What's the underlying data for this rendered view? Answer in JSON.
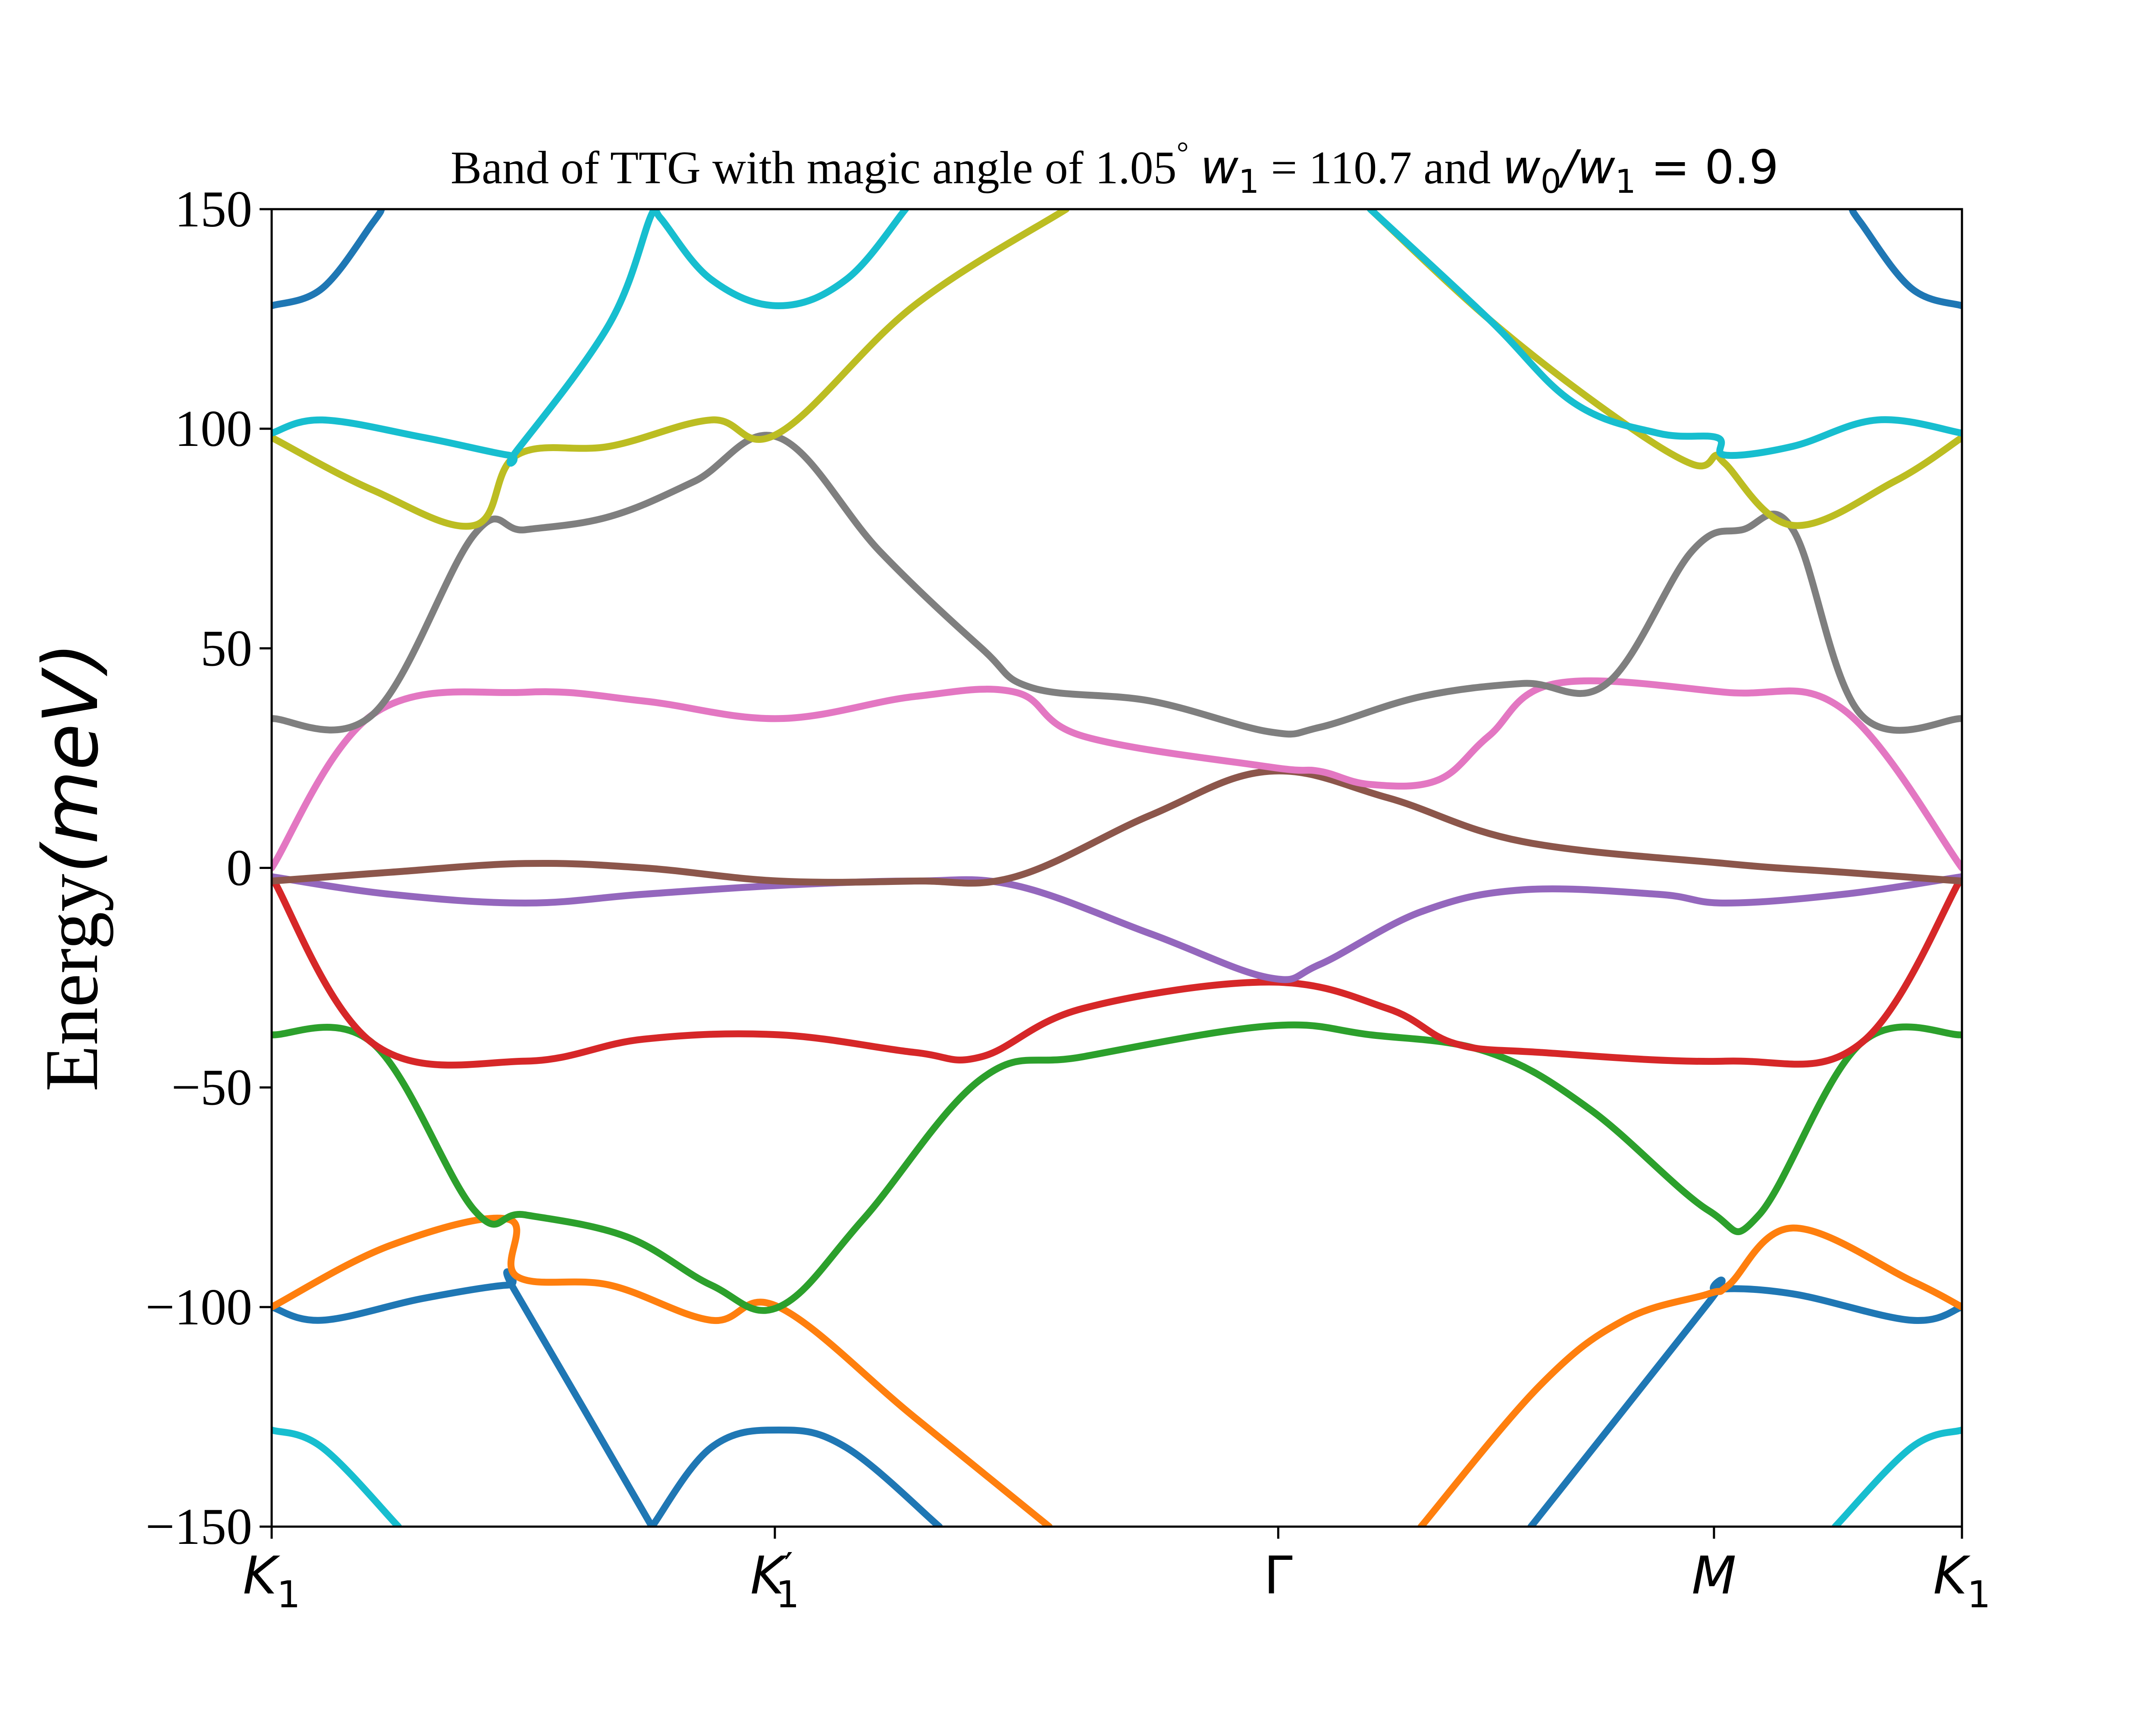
{
  "chart_data": {
    "type": "line",
    "title_parts": {
      "text_1": "Band of TTG with magic angle of 1.05",
      "degree": "°",
      "w1_sym": "w",
      "w1_sub": "1",
      "text_2": " = 110.7 and ",
      "w0_sym": "w",
      "w0_sub": "0",
      "slash": "/",
      "w1b_sym": "w",
      "w1b_sub": "1",
      "eq": " = 0.9"
    },
    "ylabel_parts": {
      "prefix": "Energy",
      "math": "(meV)"
    },
    "ylim": [
      -150,
      150
    ],
    "yticks": [
      {
        "value": 150,
        "label": "150"
      },
      {
        "value": 100,
        "label": "100"
      },
      {
        "value": 50,
        "label": "50"
      },
      {
        "value": 0,
        "label": "0"
      },
      {
        "value": -50,
        "label": "−50"
      },
      {
        "value": -100,
        "label": "−100"
      },
      {
        "value": -150,
        "label": "−150"
      }
    ],
    "xlim": [
      0,
      1
    ],
    "xticks": [
      {
        "value": 0,
        "label": "K",
        "sub": "1",
        "prime": ""
      },
      {
        "value": 0.2977,
        "label": "K",
        "sub": "1",
        "prime": "′"
      },
      {
        "value": 0.5955,
        "label": "Γ",
        "sub": "",
        "prime": ""
      },
      {
        "value": 0.8533,
        "label": "M",
        "sub": "",
        "prime": ""
      },
      {
        "value": 1,
        "label": "K",
        "sub": "1",
        "prime": ""
      }
    ],
    "grid": false,
    "series": [
      {
        "color": "#1f77b4",
        "points": [
          [
            0,
            -100
          ],
          [
            0.03,
            -103
          ],
          [
            0.09,
            -98
          ],
          [
            0.14,
            -95
          ],
          [
            0.145,
            -97
          ],
          [
            0.225,
            -150
          ]
        ]
      },
      {
        "color": "#1f77b4",
        "points": [
          [
            0.395,
            -150
          ],
          [
            0.34,
            -132
          ],
          [
            0.3,
            -128
          ],
          [
            0.26,
            -132
          ],
          [
            0.225,
            -150
          ]
        ]
      },
      {
        "color": "#1f77b4",
        "points": [
          [
            0.745,
            -150
          ],
          [
            0.85,
            -99
          ],
          [
            0.855,
            -96
          ],
          [
            0.9,
            -97
          ],
          [
            0.97,
            -103
          ],
          [
            1,
            -100
          ]
        ]
      },
      {
        "color": "#1f77b4",
        "points": [
          [
            0,
            128
          ],
          [
            0.03,
            132
          ],
          [
            0.06,
            147
          ],
          [
            0.065,
            150
          ]
        ]
      },
      {
        "color": "#1f77b4",
        "points": [
          [
            0.935,
            150
          ],
          [
            0.94,
            147
          ],
          [
            0.97,
            132
          ],
          [
            1,
            128
          ]
        ]
      },
      {
        "color": "#ff7f0e",
        "points": [
          [
            0,
            -100
          ],
          [
            0.07,
            -86
          ],
          [
            0.14,
            -80
          ],
          [
            0.145,
            -93
          ],
          [
            0.2,
            -95
          ],
          [
            0.26,
            -103
          ],
          [
            0.3,
            -100
          ],
          [
            0.38,
            -125
          ],
          [
            0.46,
            -150
          ]
        ]
      },
      {
        "color": "#ff7f0e",
        "points": [
          [
            0.68,
            -150
          ],
          [
            0.75,
            -118
          ],
          [
            0.8,
            -103
          ],
          [
            0.85,
            -97
          ],
          [
            0.862,
            -95
          ],
          [
            0.9,
            -82
          ],
          [
            0.97,
            -94
          ],
          [
            1,
            -100
          ]
        ]
      },
      {
        "color": "#2ca02c",
        "points": [
          [
            0,
            -38
          ],
          [
            0.06,
            -40
          ],
          [
            0.12,
            -78
          ],
          [
            0.15,
            -79
          ],
          [
            0.21,
            -84
          ],
          [
            0.26,
            -95
          ],
          [
            0.3,
            -100
          ],
          [
            0.35,
            -80
          ],
          [
            0.42,
            -48
          ],
          [
            0.48,
            -43
          ],
          [
            0.59,
            -36
          ],
          [
            0.65,
            -38
          ],
          [
            0.72,
            -42
          ],
          [
            0.78,
            -55
          ],
          [
            0.85,
            -78
          ],
          [
            0.88,
            -79
          ],
          [
            0.94,
            -40
          ],
          [
            1,
            -38
          ]
        ]
      },
      {
        "color": "#d62728",
        "points": [
          [
            0,
            -2
          ],
          [
            0.06,
            -40
          ],
          [
            0.15,
            -44
          ],
          [
            0.22,
            -39
          ],
          [
            0.3,
            -38
          ],
          [
            0.38,
            -42
          ],
          [
            0.42,
            -43
          ],
          [
            0.48,
            -32
          ],
          [
            0.59,
            -26
          ],
          [
            0.66,
            -32
          ],
          [
            0.7,
            -40
          ],
          [
            0.75,
            -42
          ],
          [
            0.86,
            -44
          ],
          [
            0.94,
            -40
          ],
          [
            1,
            -2
          ]
        ]
      },
      {
        "color": "#9467bd",
        "points": [
          [
            0,
            -2
          ],
          [
            0.07,
            -6
          ],
          [
            0.15,
            -8
          ],
          [
            0.22,
            -6
          ],
          [
            0.3,
            -4
          ],
          [
            0.38,
            -3
          ],
          [
            0.44,
            -4
          ],
          [
            0.52,
            -15
          ],
          [
            0.59,
            -25
          ],
          [
            0.62,
            -22
          ],
          [
            0.68,
            -10
          ],
          [
            0.74,
            -5
          ],
          [
            0.82,
            -6
          ],
          [
            0.86,
            -8
          ],
          [
            0.93,
            -6
          ],
          [
            1,
            -2
          ]
        ]
      },
      {
        "color": "#8c564b",
        "points": [
          [
            0,
            -3
          ],
          [
            0.07,
            -1
          ],
          [
            0.15,
            1
          ],
          [
            0.22,
            0
          ],
          [
            0.3,
            -3
          ],
          [
            0.38,
            -3
          ],
          [
            0.44,
            -2
          ],
          [
            0.52,
            12
          ],
          [
            0.59,
            22
          ],
          [
            0.66,
            16
          ],
          [
            0.74,
            6
          ],
          [
            0.86,
            1
          ],
          [
            0.93,
            -1
          ],
          [
            1,
            -3
          ]
        ]
      },
      {
        "color": "#e377c2",
        "points": [
          [
            0,
            0
          ],
          [
            0.06,
            35
          ],
          [
            0.15,
            40
          ],
          [
            0.22,
            38
          ],
          [
            0.3,
            34
          ],
          [
            0.38,
            39
          ],
          [
            0.44,
            40
          ],
          [
            0.48,
            30
          ],
          [
            0.59,
            23
          ],
          [
            0.62,
            22
          ],
          [
            0.65,
            19
          ],
          [
            0.69,
            20
          ],
          [
            0.72,
            30
          ],
          [
            0.76,
            42
          ],
          [
            0.86,
            40
          ],
          [
            0.93,
            36
          ],
          [
            1,
            0
          ]
        ]
      },
      {
        "color": "#7f7f7f",
        "points": [
          [
            0,
            34
          ],
          [
            0.06,
            35
          ],
          [
            0.12,
            76
          ],
          [
            0.15,
            77
          ],
          [
            0.2,
            80
          ],
          [
            0.25,
            88
          ],
          [
            0.3,
            98
          ],
          [
            0.36,
            72
          ],
          [
            0.42,
            50
          ],
          [
            0.45,
            41
          ],
          [
            0.52,
            38
          ],
          [
            0.59,
            31
          ],
          [
            0.62,
            32
          ],
          [
            0.68,
            39
          ],
          [
            0.74,
            42
          ],
          [
            0.79,
            42
          ],
          [
            0.84,
            72
          ],
          [
            0.87,
            77
          ],
          [
            0.9,
            77
          ],
          [
            0.94,
            35
          ],
          [
            1,
            34
          ]
        ]
      },
      {
        "color": "#bcbd22",
        "points": [
          [
            0,
            98
          ],
          [
            0.06,
            86
          ],
          [
            0.12,
            78
          ],
          [
            0.145,
            94
          ],
          [
            0.2,
            96
          ],
          [
            0.26,
            102
          ],
          [
            0.3,
            99
          ],
          [
            0.38,
            128
          ],
          [
            0.47,
            150
          ]
        ]
      },
      {
        "color": "#bcbd22",
        "points": [
          [
            0.65,
            150
          ],
          [
            0.72,
            125
          ],
          [
            0.79,
            104
          ],
          [
            0.84,
            92
          ],
          [
            0.855,
            94
          ],
          [
            0.86,
            92
          ],
          [
            0.9,
            78
          ],
          [
            0.96,
            88
          ],
          [
            1,
            98
          ]
        ]
      },
      {
        "color": "#17becf",
        "points": [
          [
            0,
            99
          ],
          [
            0.03,
            102
          ],
          [
            0.09,
            98
          ],
          [
            0.14,
            94
          ],
          [
            0.145,
            95
          ],
          [
            0.2,
            124
          ],
          [
            0.225,
            149
          ],
          [
            0.23,
            148
          ],
          [
            0.26,
            134
          ],
          [
            0.3,
            128
          ],
          [
            0.34,
            134
          ],
          [
            0.375,
            150
          ]
        ]
      },
      {
        "color": "#17becf",
        "points": [
          [
            0.65,
            150
          ],
          [
            0.72,
            125
          ],
          [
            0.77,
            106
          ],
          [
            0.82,
            99
          ],
          [
            0.855,
            98
          ],
          [
            0.86,
            94
          ],
          [
            0.9,
            96
          ],
          [
            0.95,
            102
          ],
          [
            1,
            99
          ]
        ]
      },
      {
        "color": "#17becf",
        "points": [
          [
            0,
            -128
          ],
          [
            0.03,
            -132
          ],
          [
            0.075,
            -150
          ]
        ]
      },
      {
        "color": "#17becf",
        "points": [
          [
            0.925,
            -150
          ],
          [
            0.97,
            -132
          ],
          [
            1,
            -128
          ]
        ]
      }
    ]
  }
}
